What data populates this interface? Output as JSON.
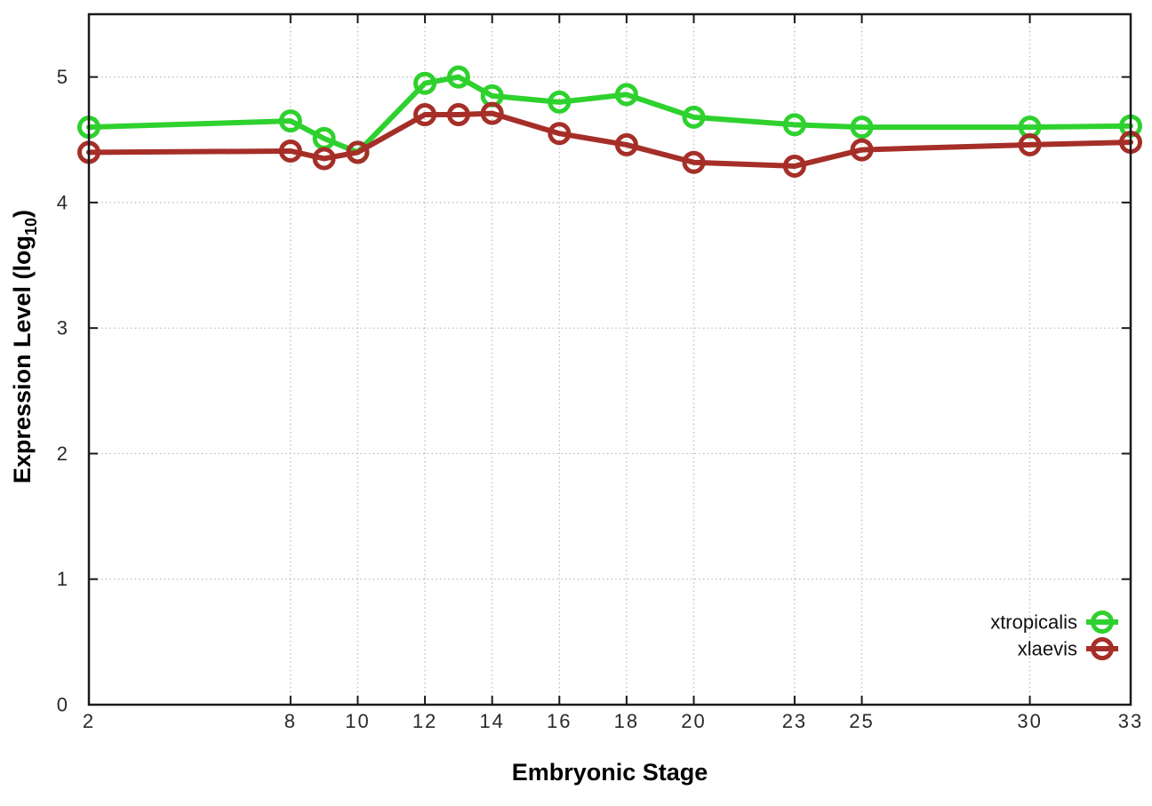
{
  "chart_data": {
    "type": "line",
    "title": "",
    "xlabel": "Embryonic Stage",
    "ylabel": {
      "main": "Expression Level (log",
      "sub": "10",
      "end": ")"
    },
    "x": [
      2,
      8,
      9,
      10,
      12,
      13,
      14,
      16,
      18,
      20,
      23,
      25,
      30,
      33
    ],
    "x_tick_values": [
      2,
      8,
      10,
      12,
      14,
      16,
      18,
      20,
      23,
      25,
      30,
      33
    ],
    "x_tick_labels": [
      "2",
      "8",
      "10",
      "12",
      "14",
      "16",
      "18",
      "20",
      "23",
      "25",
      "30",
      "33"
    ],
    "y_tick_values": [
      0,
      1,
      2,
      3,
      4,
      5
    ],
    "y_tick_labels": [
      "0",
      "1",
      "2",
      "3",
      "4",
      "5"
    ],
    "xlim": [
      2,
      33
    ],
    "ylim": [
      0,
      5.5
    ],
    "grid": true,
    "legend": {
      "position": "inside-bottom-right",
      "entries": [
        "xtropicalis",
        "xlaevis"
      ]
    },
    "series": [
      {
        "name": "xtropicalis",
        "color": "#2ed12e",
        "values": [
          4.6,
          4.65,
          4.51,
          4.4,
          4.95,
          5.0,
          4.85,
          4.8,
          4.86,
          4.68,
          4.62,
          4.6,
          4.6,
          4.61
        ]
      },
      {
        "name": "xlaevis",
        "color": "#a52f28",
        "values": [
          4.4,
          4.41,
          4.35,
          4.4,
          4.7,
          4.7,
          4.71,
          4.55,
          4.46,
          4.32,
          4.29,
          4.42,
          4.46,
          4.48
        ]
      }
    ],
    "colors": {
      "background": "#ffffff",
      "grid": "#b8b8b8",
      "axis": "#1a1a1a",
      "tick_text": "#2a2a2a"
    }
  }
}
